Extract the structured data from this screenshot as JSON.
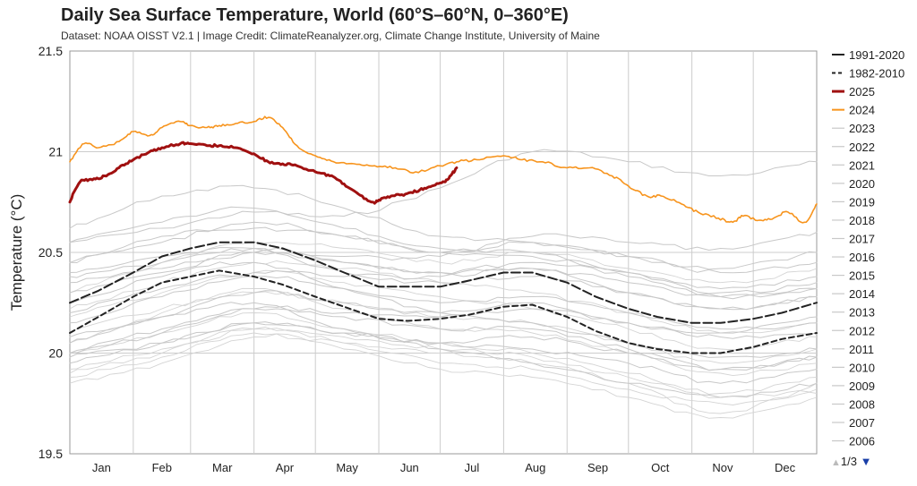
{
  "chart_data": {
    "type": "line",
    "title": "Daily Sea Surface Temperature, World (60°S–60°N, 0–360°E)",
    "subtitle": "Dataset: NOAA OISST V2.1 | Image Credit: ClimateReanalyzer.org, Climate Change Institute, University of Maine",
    "ylabel": "Temperature (°C)",
    "xlabel": "",
    "ylim": [
      19.5,
      21.5
    ],
    "yticks": [
      "19.5",
      "20",
      "20.5",
      "21",
      "21.5"
    ],
    "ytick_values": [
      19.5,
      20.0,
      20.5,
      21.0,
      21.5
    ],
    "categories": [
      "Jan",
      "Feb",
      "Mar",
      "Apr",
      "May",
      "Jun",
      "Jul",
      "Aug",
      "Sep",
      "Oct",
      "Nov",
      "Dec"
    ],
    "x_unit": "day of year",
    "xlim": [
      1,
      366
    ],
    "grid": true,
    "legend_position": "right",
    "series": [
      {
        "name": "1991-2020",
        "color": "#222222",
        "style": "dashed-long",
        "width": 2,
        "x": [
          1,
          15,
          32,
          46,
          60,
          74,
          91,
          105,
          121,
          135,
          152,
          166,
          182,
          196,
          213,
          227,
          244,
          258,
          274,
          288,
          305,
          319,
          335,
          349,
          366
        ],
        "y": [
          20.25,
          20.31,
          20.4,
          20.48,
          20.52,
          20.55,
          20.55,
          20.52,
          20.46,
          20.4,
          20.33,
          20.33,
          20.33,
          20.36,
          20.4,
          20.4,
          20.35,
          20.28,
          20.22,
          20.18,
          20.15,
          20.15,
          20.17,
          20.2,
          20.25
        ]
      },
      {
        "name": "1982-2010",
        "color": "#222222",
        "style": "dashed",
        "width": 2,
        "x": [
          1,
          15,
          32,
          46,
          60,
          74,
          91,
          105,
          121,
          135,
          152,
          166,
          182,
          196,
          213,
          227,
          244,
          258,
          274,
          288,
          305,
          319,
          335,
          349,
          366
        ],
        "y": [
          20.1,
          20.18,
          20.28,
          20.35,
          20.38,
          20.41,
          20.38,
          20.34,
          20.28,
          20.23,
          20.17,
          20.16,
          20.17,
          20.19,
          20.23,
          20.24,
          20.18,
          20.11,
          20.05,
          20.02,
          20.0,
          20.0,
          20.03,
          20.07,
          20.1
        ]
      },
      {
        "name": "2025",
        "color": "#a01010",
        "style": "solid",
        "width": 3,
        "x": [
          1,
          6,
          12,
          18,
          25,
          32,
          40,
          46,
          55,
          60,
          68,
          74,
          82,
          91,
          98,
          105,
          112,
          121,
          128,
          135,
          142,
          149,
          152,
          158,
          165,
          172,
          178,
          184,
          187,
          190
        ],
        "y": [
          20.75,
          20.85,
          20.86,
          20.88,
          20.92,
          20.96,
          21.0,
          21.02,
          21.04,
          21.04,
          21.03,
          21.03,
          21.02,
          20.99,
          20.95,
          20.94,
          20.93,
          20.9,
          20.88,
          20.84,
          20.79,
          20.75,
          20.76,
          20.78,
          20.79,
          20.81,
          20.83,
          20.85,
          20.88,
          20.92
        ]
      },
      {
        "name": "2024",
        "color": "#f7941d",
        "style": "solid",
        "width": 1.6,
        "x": [
          1,
          8,
          15,
          25,
          32,
          40,
          46,
          55,
          60,
          68,
          74,
          82,
          91,
          98,
          105,
          112,
          121,
          130,
          140,
          150,
          160,
          170,
          182,
          190,
          200,
          213,
          222,
          232,
          244,
          255,
          266,
          274,
          283,
          290,
          300,
          308,
          318,
          325,
          330,
          338,
          345,
          352,
          360,
          366
        ],
        "y": [
          20.95,
          21.04,
          21.02,
          21.05,
          21.1,
          21.08,
          21.12,
          21.15,
          21.13,
          21.12,
          21.13,
          21.14,
          21.15,
          21.17,
          21.12,
          21.03,
          20.98,
          20.95,
          20.94,
          20.93,
          20.92,
          20.9,
          20.93,
          20.95,
          20.96,
          20.98,
          20.96,
          20.95,
          20.92,
          20.92,
          20.88,
          20.83,
          20.78,
          20.78,
          20.74,
          20.7,
          20.67,
          20.65,
          20.68,
          20.66,
          20.67,
          20.7,
          20.65,
          20.74
        ]
      },
      {
        "name": "2023",
        "color": "#c8c8c8",
        "style": "solid",
        "width": 1,
        "x": [
          1,
          46,
          91,
          135,
          182,
          227,
          274,
          319,
          366
        ],
        "y": [
          20.55,
          20.62,
          20.7,
          20.68,
          20.82,
          21.0,
          20.95,
          20.88,
          20.95
        ]
      },
      {
        "name": "2022",
        "color": "#c8c8c8",
        "style": "solid",
        "width": 1,
        "x": [
          1,
          46,
          91,
          135,
          182,
          227,
          274,
          319,
          366
        ],
        "y": [
          20.4,
          20.48,
          20.52,
          20.4,
          20.38,
          20.42,
          20.3,
          20.22,
          20.28
        ]
      },
      {
        "name": "2021",
        "color": "#c8c8c8",
        "style": "solid",
        "width": 1,
        "x": [
          1,
          46,
          91,
          135,
          182,
          227,
          274,
          319,
          366
        ],
        "y": [
          20.38,
          20.45,
          20.52,
          20.45,
          20.4,
          20.45,
          20.38,
          20.28,
          20.32
        ]
      },
      {
        "name": "2020",
        "color": "#c8c8c8",
        "style": "solid",
        "width": 1,
        "x": [
          1,
          46,
          91,
          135,
          182,
          227,
          274,
          319,
          366
        ],
        "y": [
          20.55,
          20.65,
          20.72,
          20.62,
          20.52,
          20.5,
          20.4,
          20.3,
          20.35
        ]
      },
      {
        "name": "2019",
        "color": "#c8c8c8",
        "style": "solid",
        "width": 1,
        "x": [
          1,
          46,
          91,
          135,
          182,
          227,
          274,
          319,
          366
        ],
        "y": [
          20.45,
          20.58,
          20.62,
          20.58,
          20.5,
          20.55,
          20.48,
          20.42,
          20.5
        ]
      },
      {
        "name": "2018",
        "color": "#c8c8c8",
        "style": "solid",
        "width": 1,
        "x": [
          1,
          46,
          91,
          135,
          182,
          227,
          274,
          319,
          366
        ],
        "y": [
          20.35,
          20.42,
          20.5,
          20.45,
          20.4,
          20.42,
          20.35,
          20.28,
          20.32
        ]
      },
      {
        "name": "2017",
        "color": "#c8c8c8",
        "style": "solid",
        "width": 1,
        "x": [
          1,
          46,
          91,
          135,
          182,
          227,
          274,
          319,
          366
        ],
        "y": [
          20.45,
          20.55,
          20.65,
          20.58,
          20.5,
          20.48,
          20.4,
          20.32,
          20.38
        ]
      },
      {
        "name": "2016",
        "color": "#c8c8c8",
        "style": "solid",
        "width": 1,
        "x": [
          1,
          46,
          91,
          135,
          182,
          227,
          274,
          319,
          366
        ],
        "y": [
          20.62,
          20.78,
          20.82,
          20.72,
          20.58,
          20.55,
          20.48,
          20.4,
          20.45
        ]
      },
      {
        "name": "2015",
        "color": "#c8c8c8",
        "style": "solid",
        "width": 1,
        "x": [
          1,
          46,
          91,
          135,
          182,
          227,
          274,
          319,
          366
        ],
        "y": [
          20.3,
          20.4,
          20.5,
          20.48,
          20.48,
          20.58,
          20.55,
          20.52,
          20.6
        ]
      },
      {
        "name": "2014",
        "color": "#c8c8c8",
        "style": "solid",
        "width": 1,
        "x": [
          1,
          46,
          91,
          135,
          182,
          227,
          274,
          319,
          366
        ],
        "y": [
          20.2,
          20.32,
          20.4,
          20.38,
          20.35,
          20.38,
          20.3,
          20.22,
          20.28
        ]
      },
      {
        "name": "2013",
        "color": "#c8c8c8",
        "style": "solid",
        "width": 1,
        "x": [
          1,
          46,
          91,
          135,
          182,
          227,
          274,
          319,
          366
        ],
        "y": [
          20.15,
          20.28,
          20.38,
          20.32,
          20.25,
          20.28,
          20.2,
          20.12,
          20.15
        ]
      },
      {
        "name": "2012",
        "color": "#c8c8c8",
        "style": "solid",
        "width": 1,
        "x": [
          1,
          46,
          91,
          135,
          182,
          227,
          274,
          319,
          366
        ],
        "y": [
          20.05,
          20.18,
          20.3,
          20.25,
          20.2,
          20.25,
          20.15,
          20.08,
          20.1
        ]
      },
      {
        "name": "2011",
        "color": "#c8c8c8",
        "style": "solid",
        "width": 1,
        "x": [
          1,
          46,
          91,
          135,
          182,
          227,
          274,
          319,
          366
        ],
        "y": [
          20.0,
          20.12,
          20.22,
          20.18,
          20.12,
          20.12,
          20.02,
          19.92,
          19.98
        ]
      },
      {
        "name": "2010",
        "color": "#c8c8c8",
        "style": "solid",
        "width": 1,
        "x": [
          1,
          46,
          91,
          135,
          182,
          227,
          274,
          319,
          366
        ],
        "y": [
          20.25,
          20.38,
          20.45,
          20.32,
          20.2,
          20.15,
          20.05,
          19.98,
          20.02
        ]
      },
      {
        "name": "2009",
        "color": "#c8c8c8",
        "style": "solid",
        "width": 1,
        "x": [
          1,
          46,
          91,
          135,
          182,
          227,
          274,
          319,
          366
        ],
        "y": [
          20.0,
          20.1,
          20.22,
          20.2,
          20.18,
          20.22,
          20.15,
          20.1,
          20.18
        ]
      },
      {
        "name": "2008",
        "color": "#c8c8c8",
        "style": "solid",
        "width": 1,
        "x": [
          1,
          46,
          91,
          135,
          182,
          227,
          274,
          319,
          366
        ],
        "y": [
          19.98,
          20.05,
          20.15,
          20.1,
          20.05,
          20.02,
          19.95,
          19.85,
          19.92
        ]
      },
      {
        "name": "2007",
        "color": "#c8c8c8",
        "style": "solid",
        "width": 1,
        "x": [
          1,
          46,
          91,
          135,
          182,
          227,
          274,
          319,
          366
        ],
        "y": [
          20.08,
          20.18,
          20.25,
          20.12,
          20.02,
          19.95,
          19.85,
          19.78,
          19.85
        ]
      },
      {
        "name": "2006",
        "color": "#c8c8c8",
        "style": "solid",
        "width": 1,
        "x": [
          1,
          46,
          91,
          135,
          182,
          227,
          274,
          319,
          366
        ],
        "y": [
          19.95,
          20.05,
          20.15,
          20.1,
          20.05,
          20.08,
          20.0,
          19.92,
          19.98
        ]
      }
    ],
    "background_series": {
      "name": "",
      "color": "#d4d4d4",
      "note_values": [
        {
          "x": [
            1,
            46,
            91,
            135,
            182,
            227,
            274,
            319,
            366
          ],
          "y": [
            19.85,
            19.95,
            20.08,
            20.05,
            20.0,
            19.95,
            19.85,
            19.7,
            19.85
          ]
        },
        {
          "x": [
            1,
            46,
            91,
            135,
            182,
            227,
            274,
            319,
            366
          ],
          "y": [
            19.9,
            20.0,
            20.12,
            20.05,
            19.95,
            19.92,
            19.82,
            19.75,
            19.8
          ]
        },
        {
          "x": [
            1,
            46,
            91,
            135,
            182,
            227,
            274,
            319,
            366
          ],
          "y": [
            20.0,
            20.1,
            20.2,
            20.12,
            20.05,
            20.0,
            19.9,
            19.8,
            19.88
          ]
        },
        {
          "x": [
            1,
            46,
            91,
            135,
            182,
            227,
            274,
            319,
            366
          ],
          "y": [
            20.05,
            20.2,
            20.32,
            20.22,
            20.12,
            20.1,
            20.0,
            19.9,
            19.95
          ]
        },
        {
          "x": [
            1,
            46,
            91,
            135,
            182,
            227,
            274,
            319,
            366
          ],
          "y": [
            20.1,
            20.22,
            20.3,
            20.25,
            20.18,
            20.15,
            20.05,
            19.95,
            20.02
          ]
        },
        {
          "x": [
            1,
            46,
            91,
            135,
            182,
            227,
            274,
            319,
            366
          ],
          "y": [
            19.92,
            20.02,
            20.12,
            20.08,
            20.02,
            19.98,
            19.88,
            19.78,
            19.82
          ]
        },
        {
          "x": [
            1,
            46,
            91,
            135,
            182,
            227,
            274,
            319,
            366
          ],
          "y": [
            20.18,
            20.3,
            20.4,
            20.35,
            20.28,
            20.22,
            20.12,
            20.02,
            20.08
          ]
        },
        {
          "x": [
            1,
            46,
            91,
            135,
            182,
            227,
            274,
            319,
            366
          ],
          "y": [
            20.22,
            20.35,
            20.45,
            20.42,
            20.35,
            20.3,
            20.2,
            20.1,
            20.15
          ]
        },
        {
          "x": [
            1,
            46,
            91,
            135,
            182,
            227,
            274,
            319,
            366
          ],
          "y": [
            19.88,
            19.98,
            20.1,
            20.02,
            19.92,
            19.88,
            19.78,
            19.68,
            19.78
          ]
        },
        {
          "x": [
            1,
            46,
            91,
            135,
            182,
            227,
            274,
            319,
            366
          ],
          "y": [
            20.3,
            20.45,
            20.55,
            20.52,
            20.45,
            20.5,
            20.42,
            20.35,
            20.42
          ]
        }
      ]
    }
  },
  "legend_items": [
    {
      "label": "1991-2020",
      "color": "#222222",
      "style": "solid-dark"
    },
    {
      "label": "1982-2010",
      "color": "#222222",
      "style": "dashed"
    },
    {
      "label": "2025",
      "color": "#a01010",
      "style": "thick"
    },
    {
      "label": "2024",
      "color": "#f7941d",
      "style": "solid"
    },
    {
      "label": "2023",
      "color": "#c8c8c8",
      "style": "solid"
    },
    {
      "label": "2022",
      "color": "#c8c8c8",
      "style": "solid"
    },
    {
      "label": "2021",
      "color": "#c8c8c8",
      "style": "solid"
    },
    {
      "label": "2020",
      "color": "#c8c8c8",
      "style": "solid"
    },
    {
      "label": "2019",
      "color": "#c8c8c8",
      "style": "solid"
    },
    {
      "label": "2018",
      "color": "#c8c8c8",
      "style": "solid"
    },
    {
      "label": "2017",
      "color": "#c8c8c8",
      "style": "solid"
    },
    {
      "label": "2016",
      "color": "#c8c8c8",
      "style": "solid"
    },
    {
      "label": "2015",
      "color": "#c8c8c8",
      "style": "solid"
    },
    {
      "label": "2014",
      "color": "#c8c8c8",
      "style": "solid"
    },
    {
      "label": "2013",
      "color": "#c8c8c8",
      "style": "solid"
    },
    {
      "label": "2012",
      "color": "#c8c8c8",
      "style": "solid"
    },
    {
      "label": "2011",
      "color": "#c8c8c8",
      "style": "solid"
    },
    {
      "label": "2010",
      "color": "#c8c8c8",
      "style": "solid"
    },
    {
      "label": "2009",
      "color": "#c8c8c8",
      "style": "solid"
    },
    {
      "label": "2008",
      "color": "#c8c8c8",
      "style": "solid"
    },
    {
      "label": "2007",
      "color": "#c8c8c8",
      "style": "solid"
    },
    {
      "label": "2006",
      "color": "#c8c8c8",
      "style": "solid"
    }
  ],
  "pager": {
    "label": "1/3",
    "prev_icon": "triangle-up-icon",
    "next_icon": "triangle-down-icon"
  },
  "colors": {
    "grid": "#cccccc",
    "axis": "#999999",
    "text": "#222222"
  }
}
